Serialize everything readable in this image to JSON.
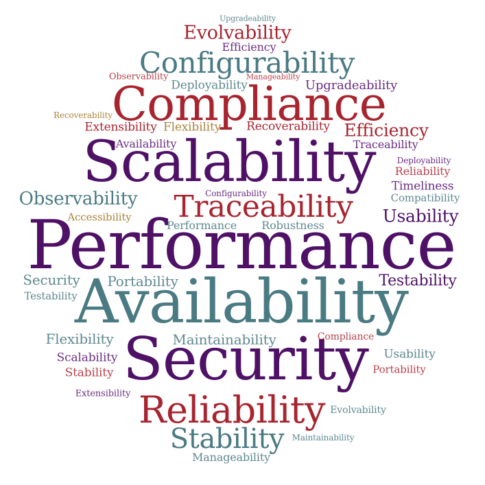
{
  "word_cloud": {
    "words": [
      {
        "id": "w01",
        "text": "Performance",
        "color": "#4e1166"
      },
      {
        "id": "w02",
        "text": "Availability",
        "color": "#4a7a82"
      },
      {
        "id": "w03",
        "text": "Scalability",
        "color": "#4e1166"
      },
      {
        "id": "w04",
        "text": "Security",
        "color": "#4e1166"
      },
      {
        "id": "w05",
        "text": "Compliance",
        "color": "#a8242f"
      },
      {
        "id": "w06",
        "text": "Reliability",
        "color": "#a8242f"
      },
      {
        "id": "w07",
        "text": "Traceability",
        "color": "#a8242f"
      },
      {
        "id": "w08",
        "text": "Configurability",
        "color": "#4a7a82"
      },
      {
        "id": "w09",
        "text": "Stability",
        "color": "#4a7a82"
      },
      {
        "id": "w10",
        "text": "Evolvability",
        "color": "#a8242f"
      },
      {
        "id": "w11",
        "text": "Observability",
        "color": "#4a7a82"
      },
      {
        "id": "w12",
        "text": "Efficiency",
        "color": "#a8242f"
      },
      {
        "id": "w13",
        "text": "Testability",
        "color": "#4e1166"
      },
      {
        "id": "w14",
        "text": "Usability",
        "color": "#4e1166"
      },
      {
        "id": "w15",
        "text": "Maintainability",
        "color": "#5e8890"
      },
      {
        "id": "w16",
        "text": "Portability",
        "color": "#5e8890"
      },
      {
        "id": "w17",
        "text": "Flexibility",
        "color": "#5e8890"
      },
      {
        "id": "w18",
        "text": "Security",
        "color": "#5e8890"
      },
      {
        "id": "w19",
        "text": "Upgradeability",
        "color": "#6a2d83"
      },
      {
        "id": "w20",
        "text": "Deployability",
        "color": "#5e8890"
      },
      {
        "id": "w21",
        "text": "Extensibility",
        "color": "#a8242f"
      },
      {
        "id": "w22",
        "text": "Flexibility",
        "color": "#a8843e"
      },
      {
        "id": "w23",
        "text": "Recoverability",
        "color": "#a8242f"
      },
      {
        "id": "w24",
        "text": "Traceability",
        "color": "#6a2d83"
      },
      {
        "id": "w25",
        "text": "Availability",
        "color": "#6a2d83"
      },
      {
        "id": "w26",
        "text": "Efficiency",
        "color": "#6a2d83"
      },
      {
        "id": "w27",
        "text": "Timeliness",
        "color": "#6a2d83"
      },
      {
        "id": "w28",
        "text": "Reliability",
        "color": "#b8404a"
      },
      {
        "id": "w29",
        "text": "Compatibility",
        "color": "#5e8890"
      },
      {
        "id": "w30",
        "text": "Performance",
        "color": "#5e8890"
      },
      {
        "id": "w31",
        "text": "Robustness",
        "color": "#5e8890"
      },
      {
        "id": "w32",
        "text": "Accessibility",
        "color": "#a8843e"
      },
      {
        "id": "w33",
        "text": "Scalability",
        "color": "#6a2d83"
      },
      {
        "id": "w34",
        "text": "Stability",
        "color": "#b8404a"
      },
      {
        "id": "w35",
        "text": "Usability",
        "color": "#5e8890"
      },
      {
        "id": "w36",
        "text": "Portability",
        "color": "#b8404a"
      },
      {
        "id": "w37",
        "text": "Testability",
        "color": "#5e8890"
      },
      {
        "id": "w38",
        "text": "Compliance",
        "color": "#b8404a"
      },
      {
        "id": "w39",
        "text": "Evolvability",
        "color": "#5e8890"
      },
      {
        "id": "w40",
        "text": "Manageability",
        "color": "#5e8890"
      },
      {
        "id": "w41",
        "text": "Observability",
        "color": "#b8404a"
      },
      {
        "id": "w42",
        "text": "Manageability",
        "color": "#b8404a"
      },
      {
        "id": "w43",
        "text": "Recoverability",
        "color": "#a8843e"
      },
      {
        "id": "w44",
        "text": "Upgradeability",
        "color": "#5e8890"
      },
      {
        "id": "w45",
        "text": "Deployability",
        "color": "#6a2d83"
      },
      {
        "id": "w46",
        "text": "Configurability",
        "color": "#6a2d83"
      },
      {
        "id": "w47",
        "text": "Extensibility",
        "color": "#6a2d83"
      },
      {
        "id": "w48",
        "text": "Maintainability",
        "color": "#5e8890"
      }
    ]
  }
}
